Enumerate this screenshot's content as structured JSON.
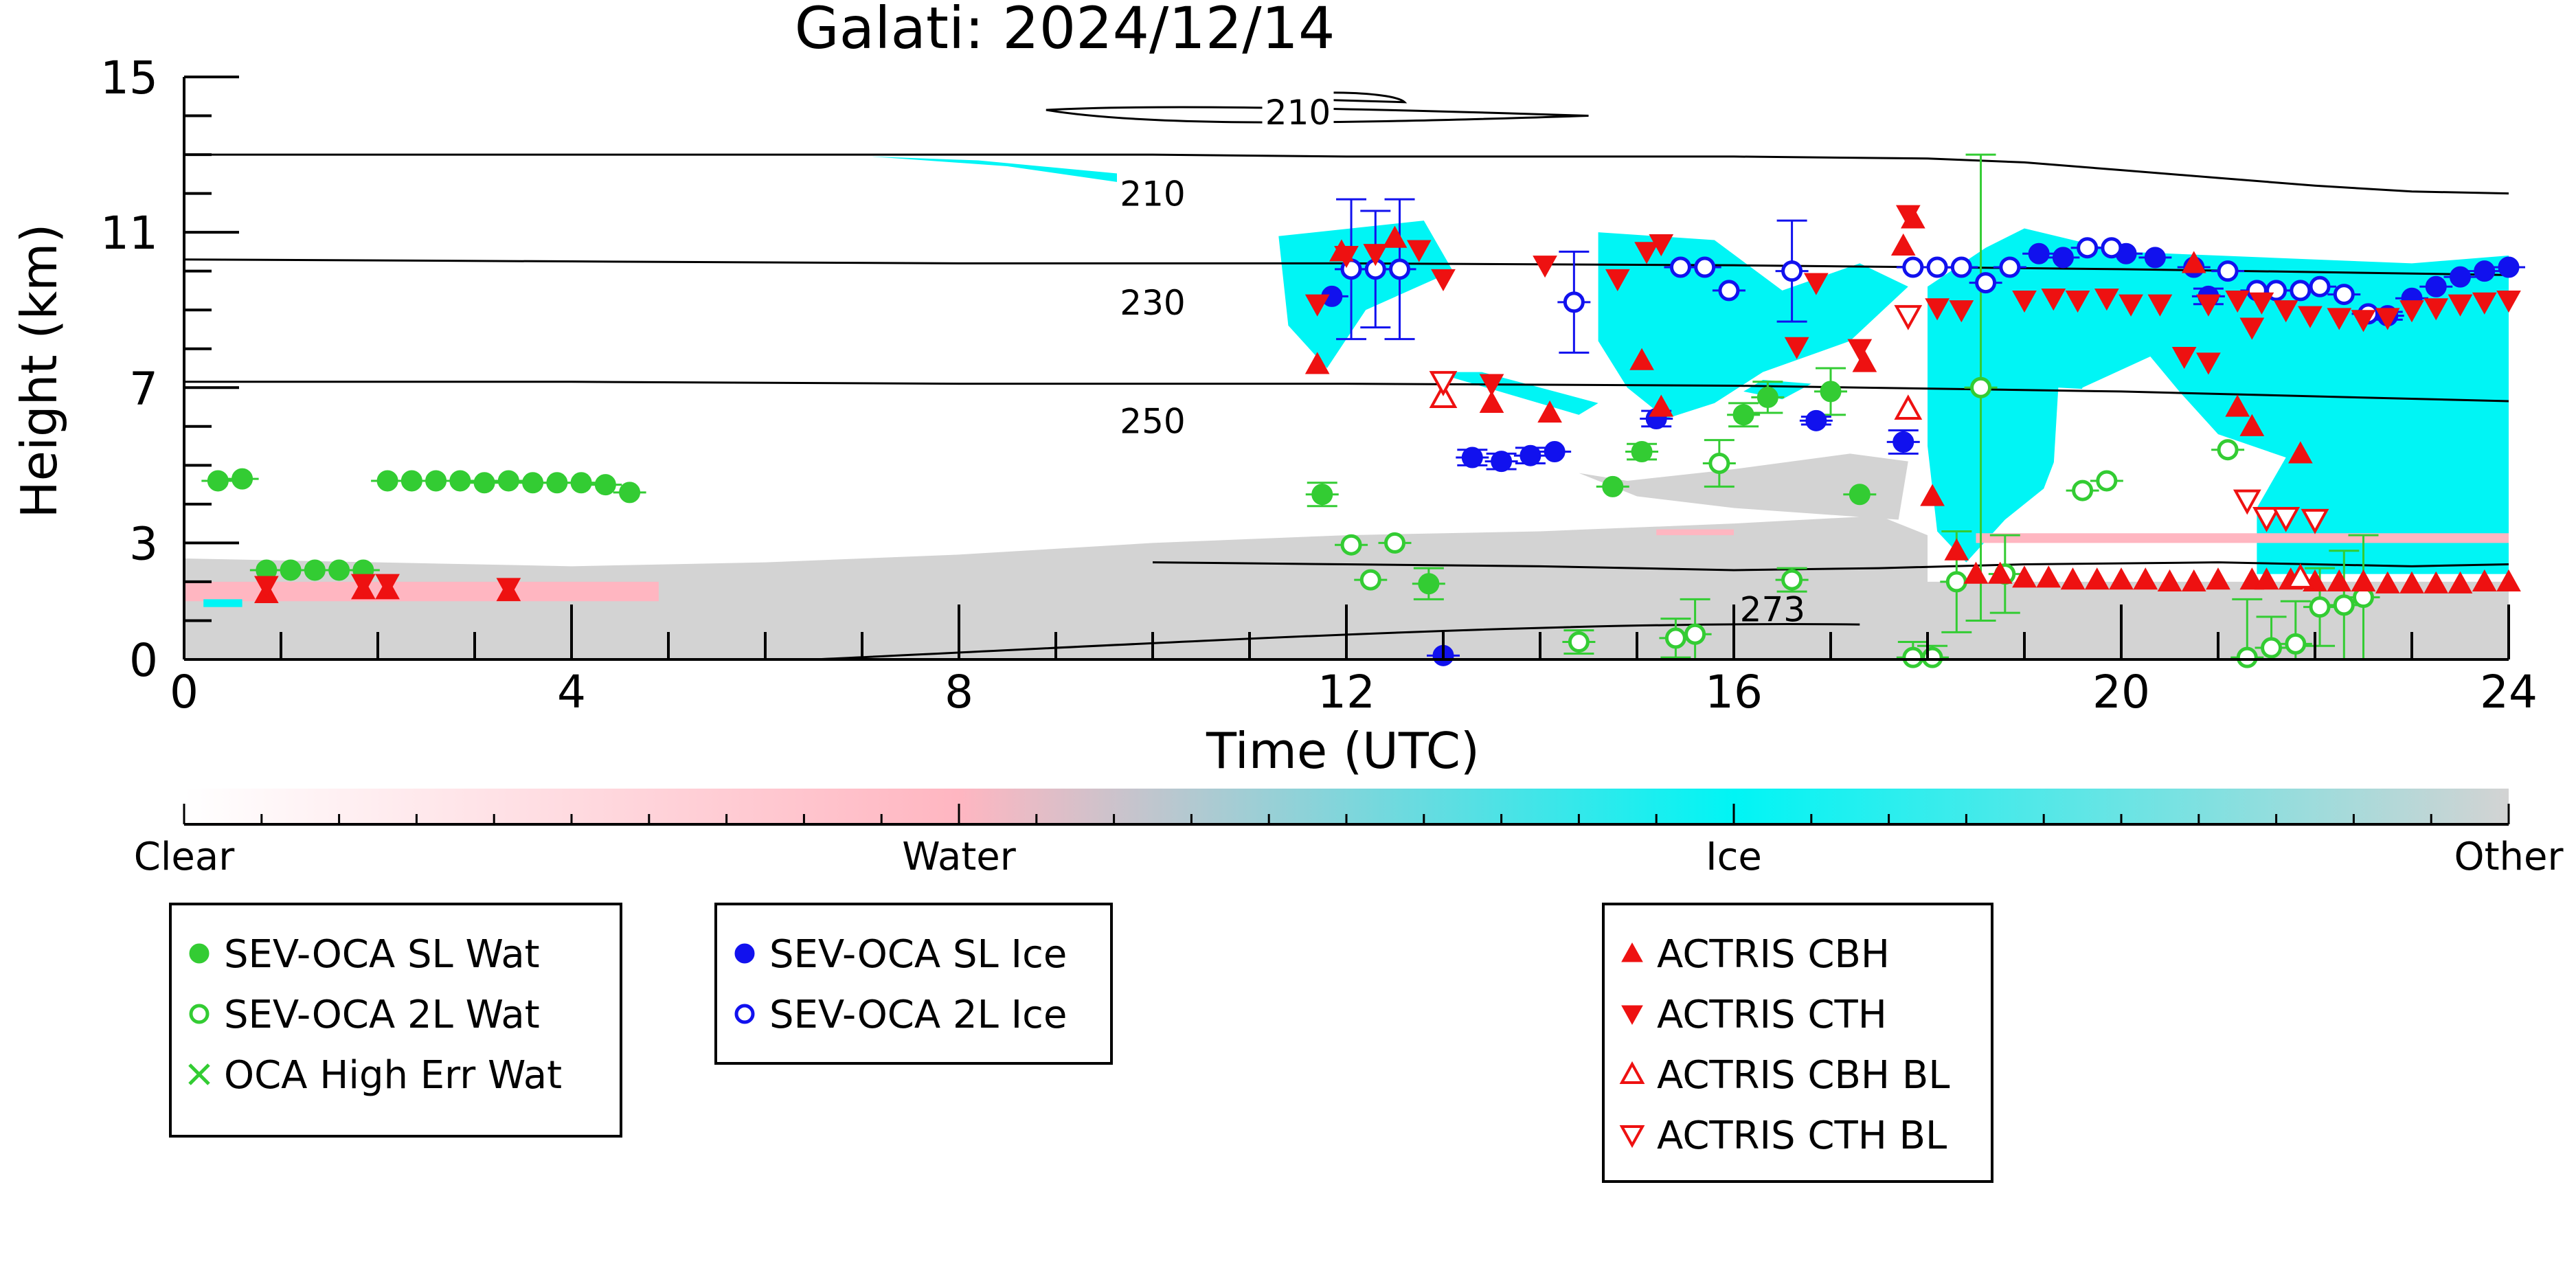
{
  "chart_data": {
    "type": "scatter",
    "title": "Galati: 2024/12/14",
    "xlabel": "Time (UTC)",
    "ylabel": "Height (km)",
    "xlim": [
      0,
      24
    ],
    "ylim": [
      0,
      15
    ],
    "xticks": [
      0,
      4,
      8,
      12,
      16,
      20,
      24
    ],
    "yticks": [
      0,
      3,
      7,
      11,
      15
    ],
    "grid": false,
    "colorbar": {
      "labels": [
        "Clear",
        "Water",
        "Ice",
        "Other"
      ],
      "colors": [
        "#ffffff",
        "#ffb6c1",
        "#00f5f5",
        "#d3d3d3"
      ]
    },
    "temperature_contours": [
      {
        "label": "210",
        "x": [
          0,
          4,
          8,
          10,
          12,
          14,
          16,
          18,
          19,
          20,
          21,
          22,
          23,
          24
        ],
        "y": [
          13.0,
          13.0,
          13.0,
          13.0,
          12.95,
          12.95,
          12.95,
          12.9,
          12.8,
          12.6,
          12.4,
          12.2,
          12.05,
          12.0
        ]
      },
      {
        "label": "230",
        "x": [
          0,
          4,
          8,
          12,
          16,
          20,
          24
        ],
        "y": [
          10.3,
          10.25,
          10.2,
          10.2,
          10.15,
          10.05,
          9.9
        ]
      },
      {
        "label": "250",
        "x": [
          0,
          4,
          8,
          12,
          16,
          20,
          24
        ],
        "y": [
          7.15,
          7.15,
          7.1,
          7.1,
          7.05,
          6.9,
          6.65
        ]
      },
      {
        "label": "273",
        "x": [
          10,
          12,
          14,
          16,
          17.5,
          19,
          21,
          23,
          24
        ],
        "y": [
          2.5,
          2.45,
          2.4,
          2.3,
          2.35,
          2.45,
          2.5,
          2.4,
          2.45
        ]
      }
    ],
    "series": [
      {
        "name": "SEV-OCA SL Wat",
        "color": "#33cc33",
        "marker": "circle",
        "filled": true,
        "x": [
          0.35,
          0.6,
          0.85,
          1.1,
          1.35,
          1.6,
          1.85,
          2.1,
          2.35,
          2.6,
          2.85,
          3.1,
          3.35,
          3.6,
          3.85,
          4.1,
          4.35,
          4.6,
          11.75,
          12.85,
          14.75,
          15.05,
          16.1,
          16.35,
          17.0,
          17.3
        ],
        "y": [
          4.6,
          4.65,
          2.3,
          2.3,
          2.3,
          2.3,
          2.3,
          4.6,
          4.6,
          4.6,
          4.6,
          4.55,
          4.6,
          4.55,
          4.55,
          4.55,
          4.5,
          4.3,
          4.25,
          1.95,
          4.45,
          5.35,
          6.3,
          6.75,
          6.9,
          4.25
        ],
        "err": [
          0,
          0,
          0,
          0,
          0,
          0,
          0,
          0,
          0,
          0,
          0,
          0,
          0,
          0,
          0,
          0,
          0,
          0,
          0.3,
          0.4,
          0,
          0.2,
          0.3,
          0.4,
          0.6,
          0
        ]
      },
      {
        "name": "SEV-OCA 2L Wat",
        "color": "#33cc33",
        "marker": "circle",
        "filled": false,
        "x": [
          12.05,
          12.25,
          12.5,
          14.4,
          15.4,
          15.6,
          15.85,
          16.6,
          17.85,
          18.05,
          18.3,
          18.55,
          18.8,
          19.6,
          19.85,
          21.1,
          21.3,
          21.55,
          21.8,
          22.05,
          22.3,
          22.5
        ],
        "y": [
          2.95,
          2.05,
          3.0,
          0.45,
          0.55,
          0.65,
          5.05,
          2.05,
          0.05,
          0.05,
          2.0,
          7.0,
          2.2,
          4.35,
          4.6,
          5.4,
          0.05,
          0.3,
          0.4,
          1.35,
          1.4,
          1.6
        ],
        "err": [
          0,
          0,
          0,
          0.3,
          0.5,
          0.9,
          0.6,
          0.3,
          0.4,
          0.3,
          1.3,
          6.0,
          1.0,
          0,
          0,
          0,
          1.5,
          0.8,
          1.1,
          1.0,
          1.4,
          1.6
        ]
      },
      {
        "name": "OCA High Err Wat",
        "color": "#33cc33",
        "marker": "x",
        "filled": false,
        "x": [],
        "y": [],
        "err": []
      },
      {
        "name": "SEV-OCA SL Ice",
        "color": "#1111ee",
        "marker": "circle",
        "filled": true,
        "x": [
          11.85,
          13.3,
          13.6,
          13.9,
          14.15,
          15.2,
          16.85,
          17.75,
          19.15,
          19.4,
          20.05,
          20.35,
          20.75,
          20.9,
          22.75,
          23.0,
          23.25,
          23.5,
          23.75,
          24.0,
          13.0
        ],
        "y": [
          9.35,
          5.2,
          5.1,
          5.25,
          5.35,
          6.2,
          6.15,
          5.6,
          10.45,
          10.35,
          10.45,
          10.35,
          10.1,
          9.35,
          8.85,
          9.3,
          9.6,
          9.85,
          10.0,
          10.1,
          0.1
        ],
        "err": [
          0,
          0.2,
          0.2,
          0.2,
          0,
          0.2,
          0.1,
          0.3,
          0,
          0,
          0,
          0,
          0,
          0.2,
          0.1,
          0,
          0,
          0,
          0,
          0,
          0
        ]
      },
      {
        "name": "SEV-OCA 2L Ice",
        "color": "#1111ee",
        "marker": "circle",
        "filled": false,
        "x": [
          12.05,
          12.3,
          12.55,
          14.35,
          15.45,
          15.7,
          15.95,
          16.6,
          17.85,
          18.1,
          18.35,
          18.6,
          18.85,
          19.65,
          19.9,
          21.1,
          21.4,
          21.6,
          21.85,
          22.05,
          22.3,
          22.55
        ],
        "y": [
          10.05,
          10.05,
          10.05,
          9.2,
          10.1,
          10.1,
          9.5,
          10.0,
          10.1,
          10.1,
          10.1,
          9.7,
          10.1,
          10.6,
          10.6,
          10.0,
          9.5,
          9.5,
          9.5,
          9.6,
          9.4,
          8.9
        ],
        "err": [
          1.8,
          1.5,
          1.8,
          1.3,
          0,
          0,
          0,
          1.3,
          0,
          0,
          0,
          0,
          0,
          0,
          0,
          0,
          0,
          0,
          0,
          0,
          0,
          0
        ]
      },
      {
        "name": "ACTRIS CBH",
        "color": "#ee1111",
        "marker": "triangle-up",
        "filled": true,
        "x": [
          0.85,
          1.85,
          2.1,
          3.35,
          11.7,
          11.95,
          12.5,
          13.5,
          14.1,
          15.05,
          15.25,
          17.35,
          17.85,
          18.05,
          18.3,
          18.5,
          18.75,
          19.0,
          19.25,
          19.5,
          19.75,
          20.0,
          20.25,
          20.5,
          20.75,
          21.0,
          21.2,
          21.35,
          21.5,
          21.75,
          22.0,
          22.25,
          22.5,
          22.75,
          23.0,
          23.25,
          23.5,
          23.75,
          24.0,
          17.75,
          20.75,
          21.35,
          21.85
        ],
        "y": [
          1.7,
          1.8,
          1.8,
          1.75,
          7.6,
          10.5,
          10.85,
          6.6,
          6.35,
          7.7,
          6.5,
          7.65,
          11.35,
          4.2,
          2.8,
          2.2,
          2.2,
          2.1,
          2.1,
          2.05,
          2.05,
          2.05,
          2.05,
          2.0,
          2.0,
          2.05,
          6.5,
          2.05,
          2.05,
          2.05,
          2.0,
          2.0,
          2.0,
          1.95,
          1.95,
          1.95,
          1.95,
          2.0,
          2.0,
          10.65,
          10.2,
          6.0,
          5.3
        ]
      },
      {
        "name": "ACTRIS CTH",
        "color": "#ee1111",
        "marker": "triangle-down",
        "filled": true,
        "x": [
          0.85,
          1.85,
          2.1,
          3.35,
          11.7,
          12.0,
          12.3,
          12.75,
          13.0,
          13.5,
          14.05,
          14.8,
          15.1,
          15.25,
          16.65,
          16.85,
          17.3,
          17.8,
          18.1,
          18.35,
          19.0,
          19.3,
          19.55,
          19.85,
          20.1,
          20.4,
          20.65,
          20.9,
          21.2,
          21.45,
          21.7,
          21.95,
          22.25,
          22.5,
          22.75,
          23.0,
          23.25,
          23.5,
          23.75,
          24.0,
          20.9,
          21.35
        ],
        "y": [
          1.9,
          1.95,
          1.95,
          1.85,
          9.15,
          10.4,
          10.45,
          10.55,
          9.8,
          7.1,
          10.15,
          9.8,
          10.5,
          10.7,
          8.05,
          9.7,
          8.0,
          11.45,
          9.05,
          9.0,
          9.25,
          9.3,
          9.25,
          9.3,
          9.15,
          9.15,
          7.8,
          9.15,
          9.25,
          9.2,
          9.0,
          8.85,
          8.8,
          8.75,
          8.8,
          9.0,
          9.05,
          9.15,
          9.2,
          9.25,
          7.65,
          8.55
        ]
      },
      {
        "name": "ACTRIS CBH BL",
        "color": "#ee1111",
        "marker": "triangle-up",
        "filled": false,
        "x": [
          13.0,
          17.8,
          21.85
        ],
        "y": [
          6.75,
          6.45,
          2.1
        ]
      },
      {
        "name": "ACTRIS CTH BL",
        "color": "#ee1111",
        "marker": "triangle-down",
        "filled": false,
        "x": [
          13.0,
          17.8,
          21.3,
          21.5,
          21.7,
          22.0
        ],
        "y": [
          7.15,
          8.85,
          4.1,
          3.65,
          3.65,
          3.6
        ]
      }
    ],
    "contour_labels": [
      "210",
      "210",
      "230",
      "250",
      "273"
    ],
    "legends": [
      {
        "position": "bottom-left",
        "entries": [
          "SEV-OCA SL Wat",
          "SEV-OCA 2L Wat",
          "OCA High Err Wat"
        ]
      },
      {
        "position": "bottom-center",
        "entries": [
          "SEV-OCA SL Ice",
          "SEV-OCA 2L Ice"
        ]
      },
      {
        "position": "bottom-right",
        "entries": [
          "ACTRIS CBH",
          "ACTRIS CTH",
          "ACTRIS CBH BL",
          "ACTRIS CTH BL"
        ]
      }
    ]
  }
}
